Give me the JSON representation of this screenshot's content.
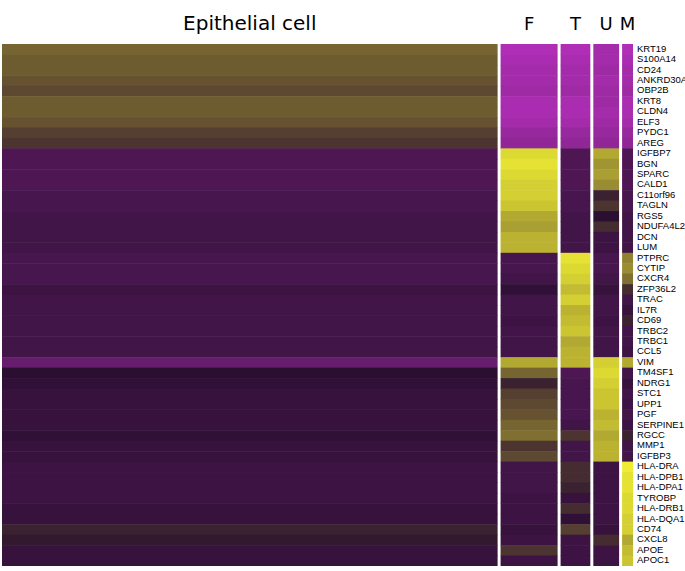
{
  "chart_data": {
    "type": "heatmap",
    "columns": [
      "Epithelial cell",
      "F",
      "T",
      "U",
      "M"
    ],
    "cell_counts": [
      1000,
      115,
      60,
      52,
      22
    ],
    "rows": [
      "KRT19",
      "S100A14",
      "CD24",
      "ANKRD30A",
      "OBP2B",
      "KRT8",
      "CLDN4",
      "ELF3",
      "PYDC1",
      "AREG",
      "IGFBP7",
      "BGN",
      "SPARC",
      "CALD1",
      "C11orf96",
      "TAGLN",
      "RGS5",
      "NDUFA4L2",
      "DCN",
      "LUM",
      "PTPRC",
      "CYTIP",
      "CXCR4",
      "ZFP36L2",
      "TRAC",
      "IL7R",
      "CD69",
      "TRBC2",
      "TRBC1",
      "CCL5",
      "VIM",
      "TM4SF1",
      "NDRG1",
      "STC1",
      "UPP1",
      "PGF",
      "SERPINE1",
      "RGCC",
      "MMP1",
      "IGFBP3",
      "HLA-DRA",
      "HLA-DPB1",
      "HLA-DPA1",
      "TYROBP",
      "HLA-DRB1",
      "HLA-DQA1",
      "CD74",
      "CXCL8",
      "APOE",
      "APOC1"
    ],
    "values": [
      [
        0.9,
        -2.2,
        -2.2,
        -2.0,
        -2.2
      ],
      [
        0.8,
        -2.1,
        -2.1,
        -2.0,
        -2.1
      ],
      [
        0.8,
        -2.0,
        -2.0,
        -1.9,
        -2.0
      ],
      [
        0.7,
        -2.0,
        -2.0,
        -2.0,
        -2.0
      ],
      [
        0.6,
        -1.9,
        -1.9,
        -1.9,
        -1.9
      ],
      [
        0.8,
        -2.1,
        -2.1,
        -1.9,
        -2.1
      ],
      [
        0.8,
        -2.1,
        -2.1,
        -2.0,
        -2.1
      ],
      [
        0.7,
        -2.0,
        -2.0,
        -1.9,
        -2.0
      ],
      [
        0.5,
        -1.8,
        -1.8,
        -1.8,
        -1.8
      ],
      [
        0.4,
        -1.7,
        -1.7,
        -1.7,
        -1.7
      ],
      [
        -0.6,
        2.1,
        -0.6,
        1.6,
        -0.6
      ],
      [
        -0.6,
        2.2,
        -0.6,
        1.4,
        -0.6
      ],
      [
        -0.6,
        2.1,
        -0.6,
        1.5,
        -0.6
      ],
      [
        -0.6,
        2.0,
        -0.6,
        1.3,
        -0.6
      ],
      [
        -0.5,
        2.0,
        -0.5,
        0.2,
        -0.5
      ],
      [
        -0.5,
        1.9,
        -0.5,
        0.4,
        -0.5
      ],
      [
        -0.4,
        1.6,
        -0.4,
        0.0,
        -0.4
      ],
      [
        -0.4,
        1.5,
        -0.4,
        0.3,
        -0.4
      ],
      [
        -0.4,
        1.7,
        -0.4,
        -0.3,
        -0.4
      ],
      [
        -0.4,
        1.7,
        -0.4,
        -0.3,
        -0.4
      ],
      [
        -0.5,
        -0.5,
        2.2,
        -0.5,
        1.2
      ],
      [
        -0.5,
        -0.5,
        2.1,
        -0.5,
        1.3
      ],
      [
        -0.5,
        -0.4,
        2.0,
        -0.4,
        1.0
      ],
      [
        -0.3,
        -0.1,
        1.8,
        -0.2,
        0.3
      ],
      [
        -0.4,
        -0.4,
        2.0,
        -0.4,
        -0.4
      ],
      [
        -0.4,
        -0.4,
        1.7,
        -0.4,
        -0.2
      ],
      [
        -0.4,
        -0.3,
        1.8,
        -0.3,
        0.2
      ],
      [
        -0.4,
        -0.4,
        1.9,
        -0.4,
        -0.4
      ],
      [
        -0.4,
        -0.4,
        1.6,
        -0.4,
        -0.4
      ],
      [
        -0.4,
        -0.4,
        1.7,
        -0.4,
        -0.3
      ],
      [
        -1.0,
        1.6,
        1.7,
        2.0,
        1.6
      ],
      [
        0.0,
        0.9,
        -0.6,
        2.1,
        -0.4
      ],
      [
        -0.1,
        0.2,
        -0.5,
        2.0,
        -0.2
      ],
      [
        -0.2,
        0.5,
        -0.5,
        1.9,
        -0.4
      ],
      [
        -0.2,
        0.6,
        -0.5,
        1.9,
        -0.3
      ],
      [
        -0.2,
        0.7,
        -0.5,
        1.7,
        -0.4
      ],
      [
        -0.2,
        0.9,
        -0.4,
        1.8,
        -0.3
      ],
      [
        -0.1,
        1.0,
        0.4,
        1.6,
        0.2
      ],
      [
        -0.2,
        0.4,
        -0.4,
        1.7,
        -0.4
      ],
      [
        -0.2,
        0.6,
        -0.4,
        1.7,
        -0.4
      ],
      [
        -0.3,
        -0.4,
        0.3,
        -0.3,
        2.3
      ],
      [
        -0.3,
        -0.4,
        0.3,
        -0.3,
        2.2
      ],
      [
        -0.3,
        -0.4,
        0.2,
        -0.3,
        2.2
      ],
      [
        -0.3,
        -0.3,
        -0.2,
        -0.3,
        2.1
      ],
      [
        -0.2,
        -0.3,
        0.3,
        -0.3,
        2.1
      ],
      [
        -0.2,
        -0.3,
        -0.1,
        -0.3,
        2.0
      ],
      [
        0.2,
        -0.2,
        0.5,
        -0.2,
        2.0
      ],
      [
        0.1,
        -0.3,
        -0.3,
        0.3,
        1.6
      ],
      [
        -0.2,
        0.4,
        -0.3,
        -0.3,
        1.8
      ],
      [
        -0.2,
        -0.3,
        -0.3,
        -0.3,
        1.9
      ]
    ],
    "color_range": [
      -2.5,
      2.5
    ]
  }
}
